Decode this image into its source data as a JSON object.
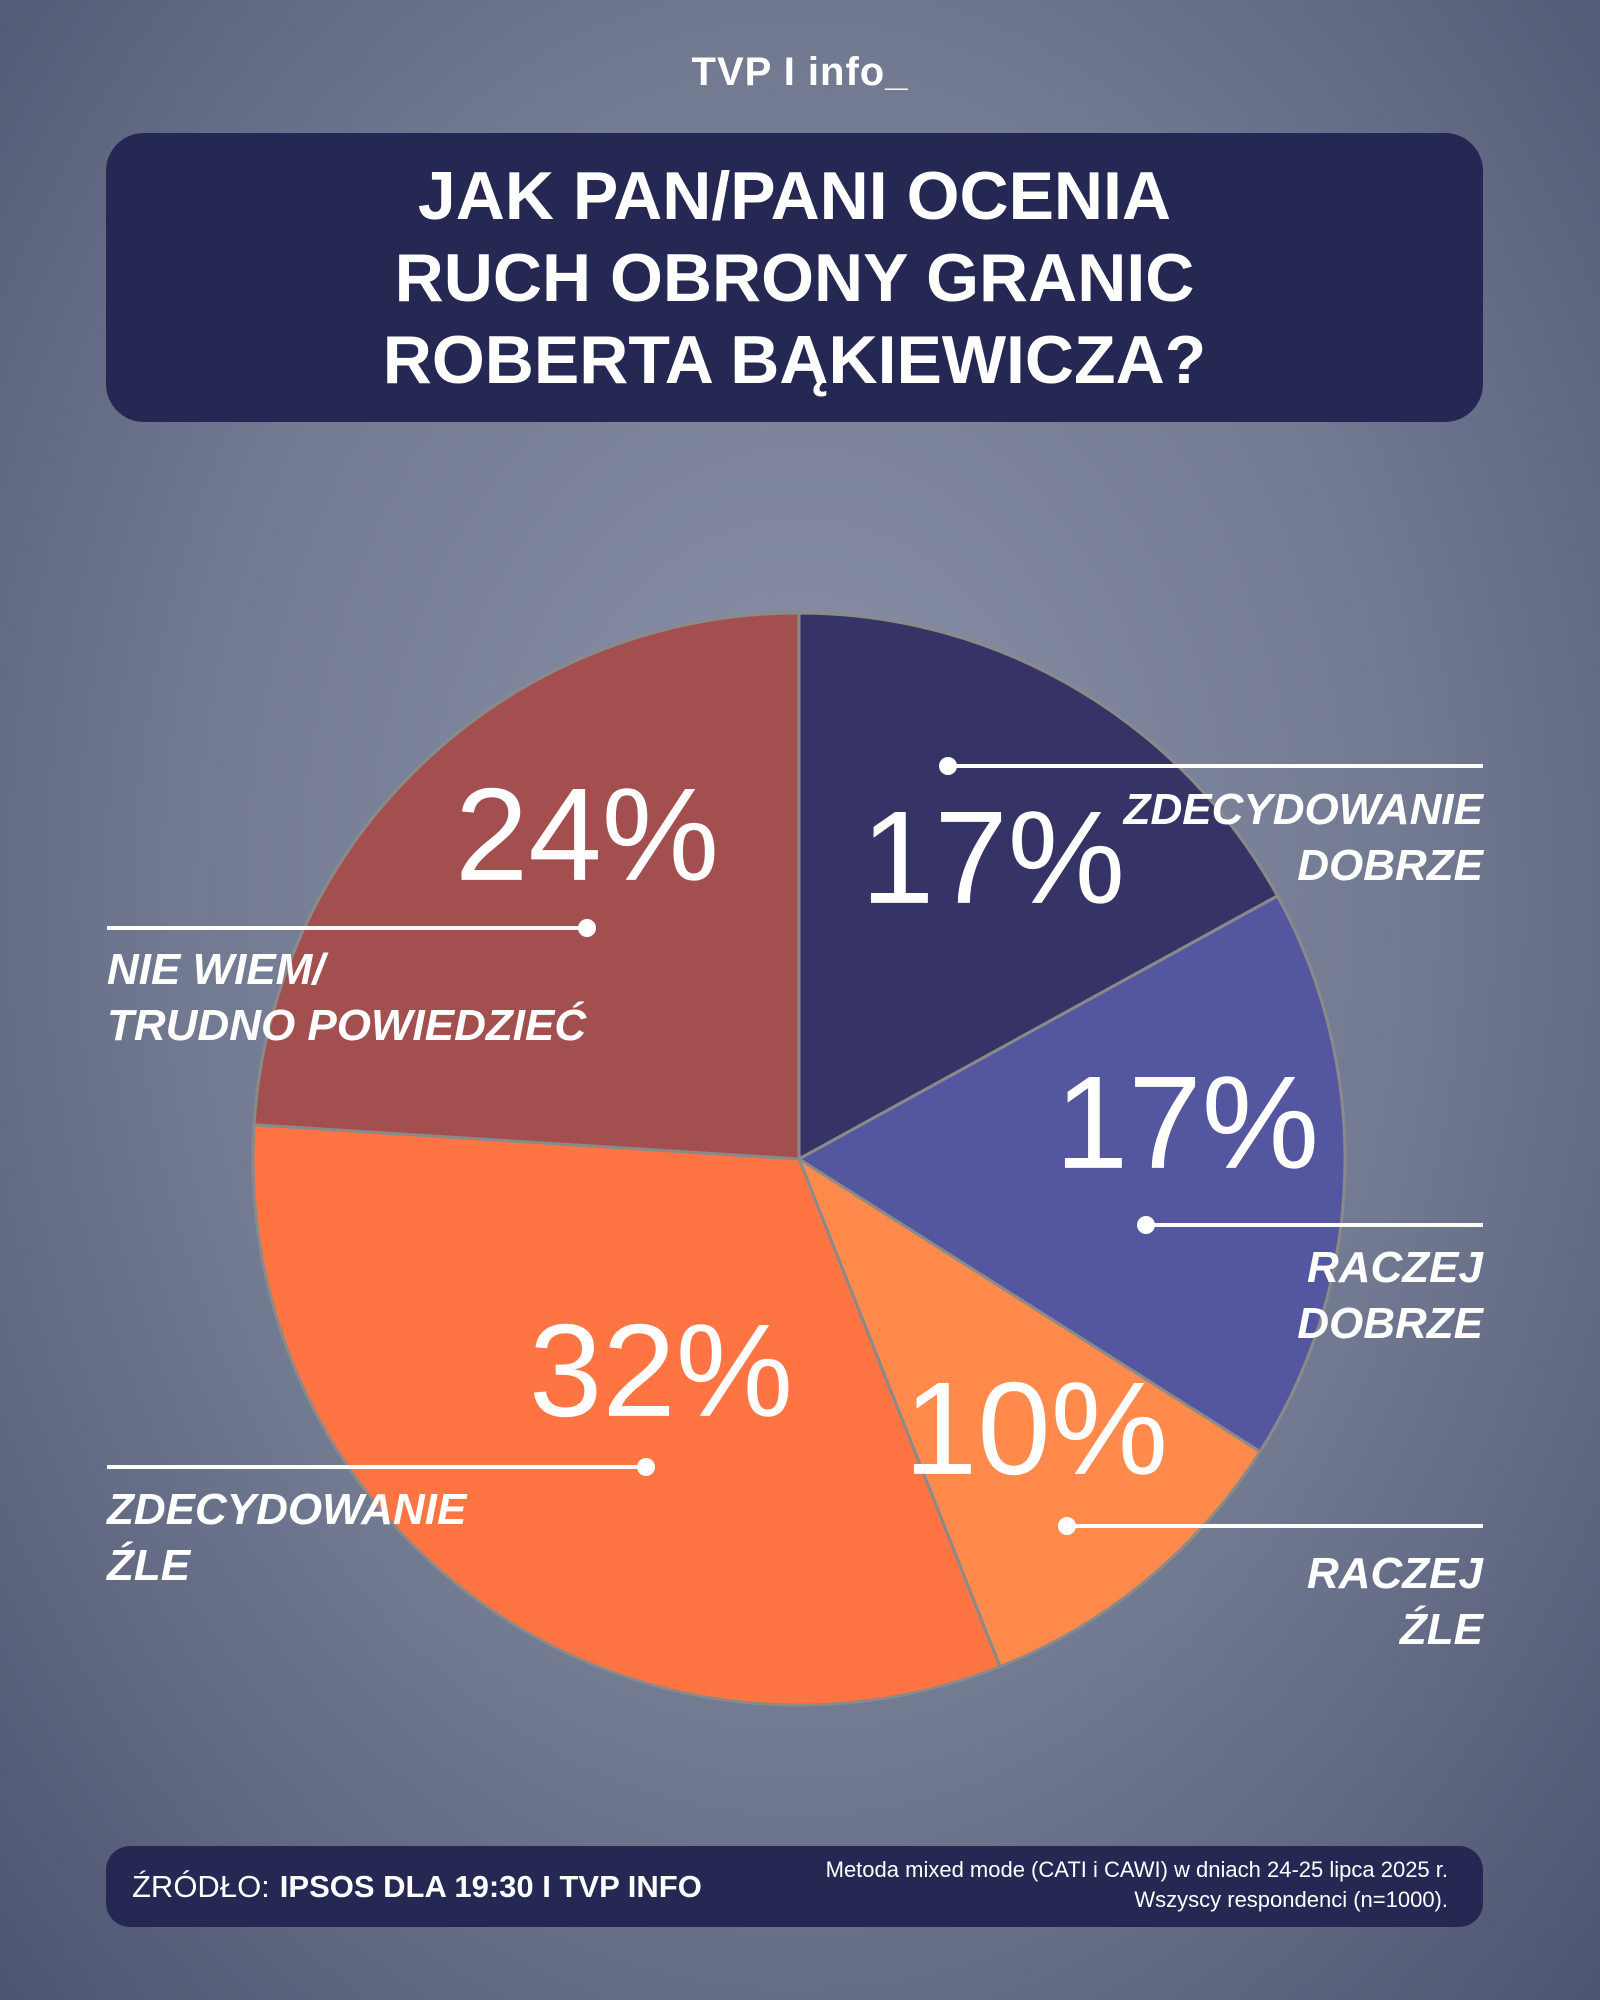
{
  "logo": "TVP I info_",
  "chart_data": {
    "type": "pie",
    "title": "JAK PAN/PANI OCENIA\nRUCH OBRONY GRANIC\nROBERTA BĄKIEWICZA?",
    "categories": [
      "ZDECYDOWANIE\nDOBRZE",
      "RACZEJ\nDOBRZE",
      "RACZEJ\nŹLE",
      "ZDECYDOWANIE\nŹLE",
      "NIE WIEM/\nTRUDNO POWIEDZIEĆ"
    ],
    "values": [
      17,
      17,
      10,
      32,
      24
    ],
    "value_labels": [
      "17%",
      "17%",
      "10%",
      "32%",
      "24%"
    ],
    "colors": [
      "#363466",
      "#5457a0",
      "#ff8a4c",
      "#ff7443",
      "#a34f4f"
    ]
  },
  "footer": {
    "source_label": "ŹRÓDŁO:",
    "source": "IPSOS DLA 19:30 I TVP INFO",
    "note": "Metoda mixed mode (CATI i CAWI) w dniach 24-25 lipca 2025 r.\nWszyscy respondenci (n=1000)."
  }
}
